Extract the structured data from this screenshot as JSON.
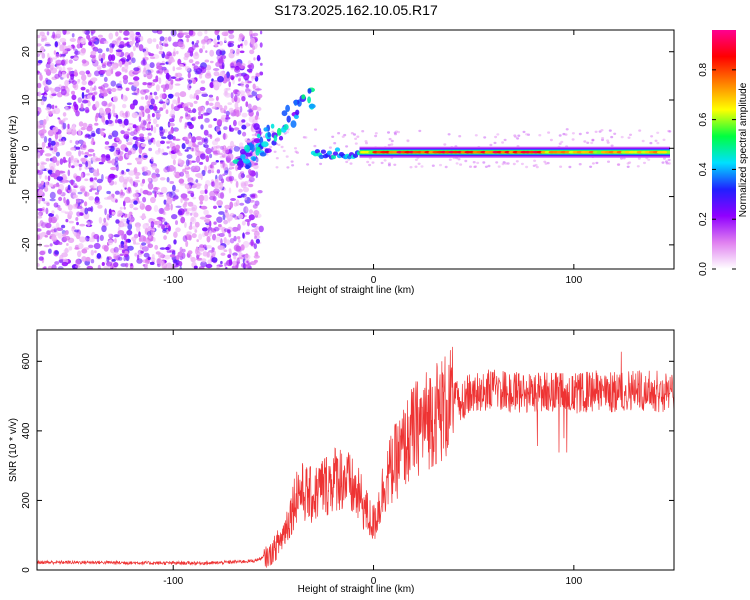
{
  "figure_title": "S173.2025.162.10.05.R17",
  "chart_data": [
    {
      "type": "heatmap",
      "xlabel": "Height of straight line (km)",
      "ylabel": "Frequency (Hz)",
      "xlim": [
        -168,
        150
      ],
      "ylim": [
        -25,
        24.5
      ],
      "xticks": [
        -100,
        0,
        100
      ],
      "yticks": [
        -20,
        -10,
        0,
        10,
        20
      ],
      "colorbar": {
        "label": "Normalized spectral amplitude",
        "range": [
          0,
          0.96
        ],
        "ticks": [
          "0.0",
          "0.2",
          "0.4",
          "0.6",
          "0.8"
        ],
        "stops": [
          "#ffffff",
          "#e080f0",
          "#9000ff",
          "#2020ff",
          "#00e0ff",
          "#00ff40",
          "#ffff00",
          "#ff8000",
          "#ff0000",
          "#ff0090"
        ]
      },
      "description_regions": [
        {
          "x_range": [
            -168,
            -56
          ],
          "freq_range": [
            -25,
            24.5
          ],
          "amplitude": "0.0-0.3 (noise)"
        },
        {
          "x_range": [
            -70,
            -30
          ],
          "freq_trend": [
            -5,
            12
          ],
          "amplitude": "0.2-0.5"
        },
        {
          "x_range": [
            -30,
            -5
          ],
          "freq": -1,
          "amplitude": "0.3-0.5"
        },
        {
          "x_range": [
            -7,
            148
          ],
          "freq": -0.8,
          "amplitude_peak": 0.96
        }
      ]
    },
    {
      "type": "line",
      "xlabel": "Height of straight line (km)",
      "ylabel": "SNR (10 * v/v)",
      "xlim": [
        -168,
        150
      ],
      "ylim": [
        0,
        690
      ],
      "xticks": [
        -100,
        0,
        100
      ],
      "yticks": [
        0,
        200,
        400,
        600
      ],
      "series": [
        {
          "name": "SNR",
          "color": "#ee3333",
          "x": [
            -168,
            -140,
            -110,
            -80,
            -60,
            -52,
            -46,
            -42,
            -38,
            -34,
            -30,
            -26,
            -22,
            -18,
            -14,
            -10,
            -6,
            -3,
            0,
            3,
            6,
            10,
            15,
            20,
            30,
            40,
            50,
            60,
            70,
            80,
            90,
            100,
            110,
            120,
            130,
            140,
            150
          ],
          "values": [
            22,
            22,
            20,
            20,
            26,
            40,
            90,
            150,
            230,
            220,
            210,
            240,
            250,
            270,
            260,
            230,
            200,
            160,
            130,
            190,
            260,
            300,
            350,
            400,
            450,
            480,
            510,
            520,
            510,
            510,
            515,
            505,
            515,
            510,
            520,
            515,
            505
          ]
        }
      ]
    }
  ]
}
